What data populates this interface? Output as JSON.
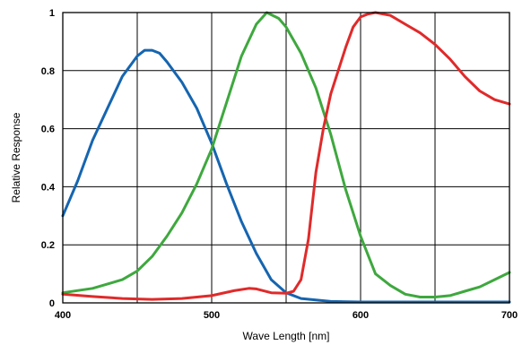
{
  "chart_data": {
    "type": "line",
    "xlabel": "Wave Length [nm]",
    "ylabel": "Relative Response",
    "xlim": [
      400,
      700
    ],
    "ylim": [
      0,
      1
    ],
    "x_ticks": [
      "400",
      "500",
      "600",
      "700"
    ],
    "y_ticks": [
      "0",
      "0.2",
      "0.4",
      "0.6",
      "0.8",
      "1"
    ],
    "x_ticks_values": [
      400,
      500,
      600,
      700
    ],
    "y_ticks_values": [
      0,
      0.2,
      0.4,
      0.6,
      0.8,
      1
    ],
    "x_grid": [
      400,
      450,
      500,
      550,
      600,
      650,
      700
    ],
    "y_grid": [
      0,
      0.2,
      0.4,
      0.6,
      0.8,
      1
    ],
    "grid": true,
    "legend": "none",
    "series": [
      {
        "color": "#1565b0",
        "points": [
          [
            400,
            0.3
          ],
          [
            410,
            0.42
          ],
          [
            420,
            0.56
          ],
          [
            430,
            0.67
          ],
          [
            440,
            0.78
          ],
          [
            450,
            0.85
          ],
          [
            455,
            0.87
          ],
          [
            460,
            0.87
          ],
          [
            465,
            0.86
          ],
          [
            470,
            0.83
          ],
          [
            480,
            0.76
          ],
          [
            490,
            0.67
          ],
          [
            500,
            0.55
          ],
          [
            510,
            0.41
          ],
          [
            520,
            0.28
          ],
          [
            530,
            0.17
          ],
          [
            540,
            0.08
          ],
          [
            550,
            0.035
          ],
          [
            560,
            0.015
          ],
          [
            580,
            0.005
          ],
          [
            600,
            0.003
          ],
          [
            650,
            0.003
          ],
          [
            700,
            0.003
          ]
        ]
      },
      {
        "color": "#3ea83e",
        "points": [
          [
            400,
            0.035
          ],
          [
            420,
            0.05
          ],
          [
            440,
            0.08
          ],
          [
            450,
            0.11
          ],
          [
            460,
            0.16
          ],
          [
            470,
            0.23
          ],
          [
            480,
            0.31
          ],
          [
            490,
            0.41
          ],
          [
            500,
            0.53
          ],
          [
            510,
            0.69
          ],
          [
            520,
            0.85
          ],
          [
            530,
            0.96
          ],
          [
            537,
            1.0
          ],
          [
            545,
            0.98
          ],
          [
            550,
            0.95
          ],
          [
            560,
            0.86
          ],
          [
            570,
            0.74
          ],
          [
            580,
            0.58
          ],
          [
            590,
            0.39
          ],
          [
            600,
            0.23
          ],
          [
            610,
            0.1
          ],
          [
            620,
            0.06
          ],
          [
            630,
            0.03
          ],
          [
            640,
            0.02
          ],
          [
            650,
            0.02
          ],
          [
            660,
            0.025
          ],
          [
            670,
            0.04
          ],
          [
            680,
            0.055
          ],
          [
            690,
            0.08
          ],
          [
            700,
            0.105
          ]
        ]
      },
      {
        "color": "#e02a2a",
        "points": [
          [
            400,
            0.03
          ],
          [
            420,
            0.022
          ],
          [
            440,
            0.015
          ],
          [
            460,
            0.012
          ],
          [
            480,
            0.015
          ],
          [
            500,
            0.025
          ],
          [
            515,
            0.042
          ],
          [
            525,
            0.05
          ],
          [
            530,
            0.048
          ],
          [
            540,
            0.035
          ],
          [
            550,
            0.033
          ],
          [
            555,
            0.04
          ],
          [
            560,
            0.08
          ],
          [
            565,
            0.22
          ],
          [
            570,
            0.45
          ],
          [
            575,
            0.6
          ],
          [
            580,
            0.72
          ],
          [
            585,
            0.8
          ],
          [
            590,
            0.88
          ],
          [
            595,
            0.95
          ],
          [
            600,
            0.985
          ],
          [
            605,
            0.995
          ],
          [
            610,
            1.0
          ],
          [
            620,
            0.99
          ],
          [
            630,
            0.96
          ],
          [
            640,
            0.93
          ],
          [
            650,
            0.89
          ],
          [
            660,
            0.84
          ],
          [
            670,
            0.78
          ],
          [
            680,
            0.73
          ],
          [
            690,
            0.7
          ],
          [
            700,
            0.685
          ]
        ]
      }
    ]
  }
}
